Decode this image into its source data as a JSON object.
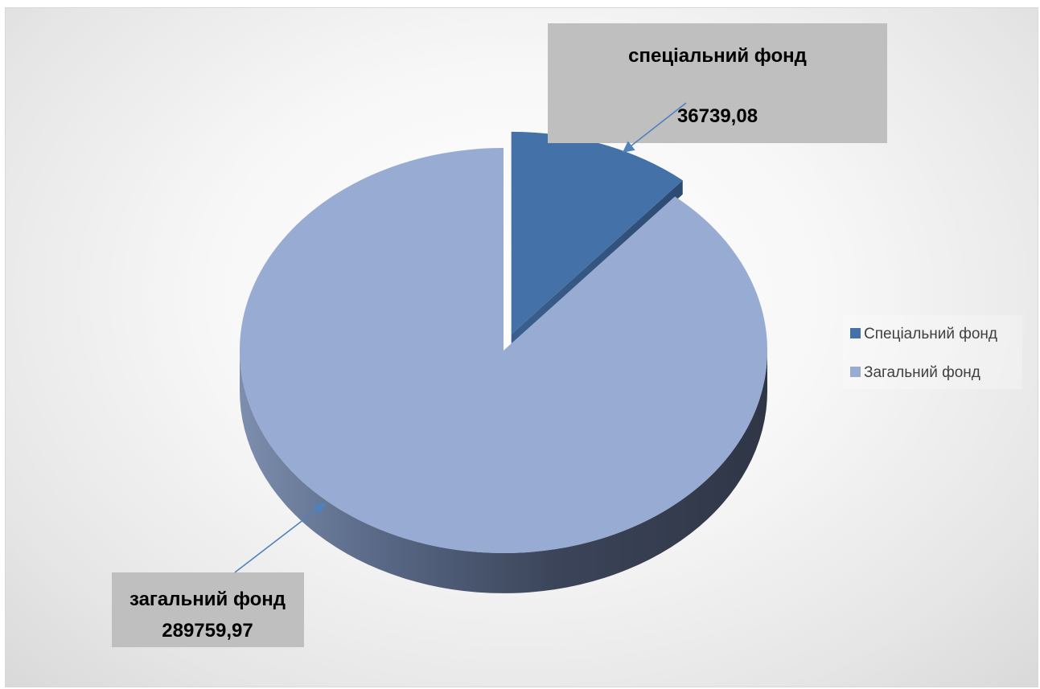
{
  "chart_data": {
    "type": "pie",
    "style": "3d-exploded",
    "title": "",
    "slices": [
      {
        "name": "Спеціальний фонд",
        "value": 36739.08,
        "label_title": "спеціальний фонд",
        "label_value": "36739,08",
        "color": "#4472a8",
        "exploded": true
      },
      {
        "name": "Загальний фонд",
        "value": 289759.97,
        "label_title": "загальний фонд",
        "label_value": "289759,97",
        "color": "#98abd2",
        "exploded": false
      }
    ],
    "legend": {
      "position": "right",
      "entries": [
        "Спеціальний фонд",
        "Загальний фонд"
      ]
    }
  }
}
